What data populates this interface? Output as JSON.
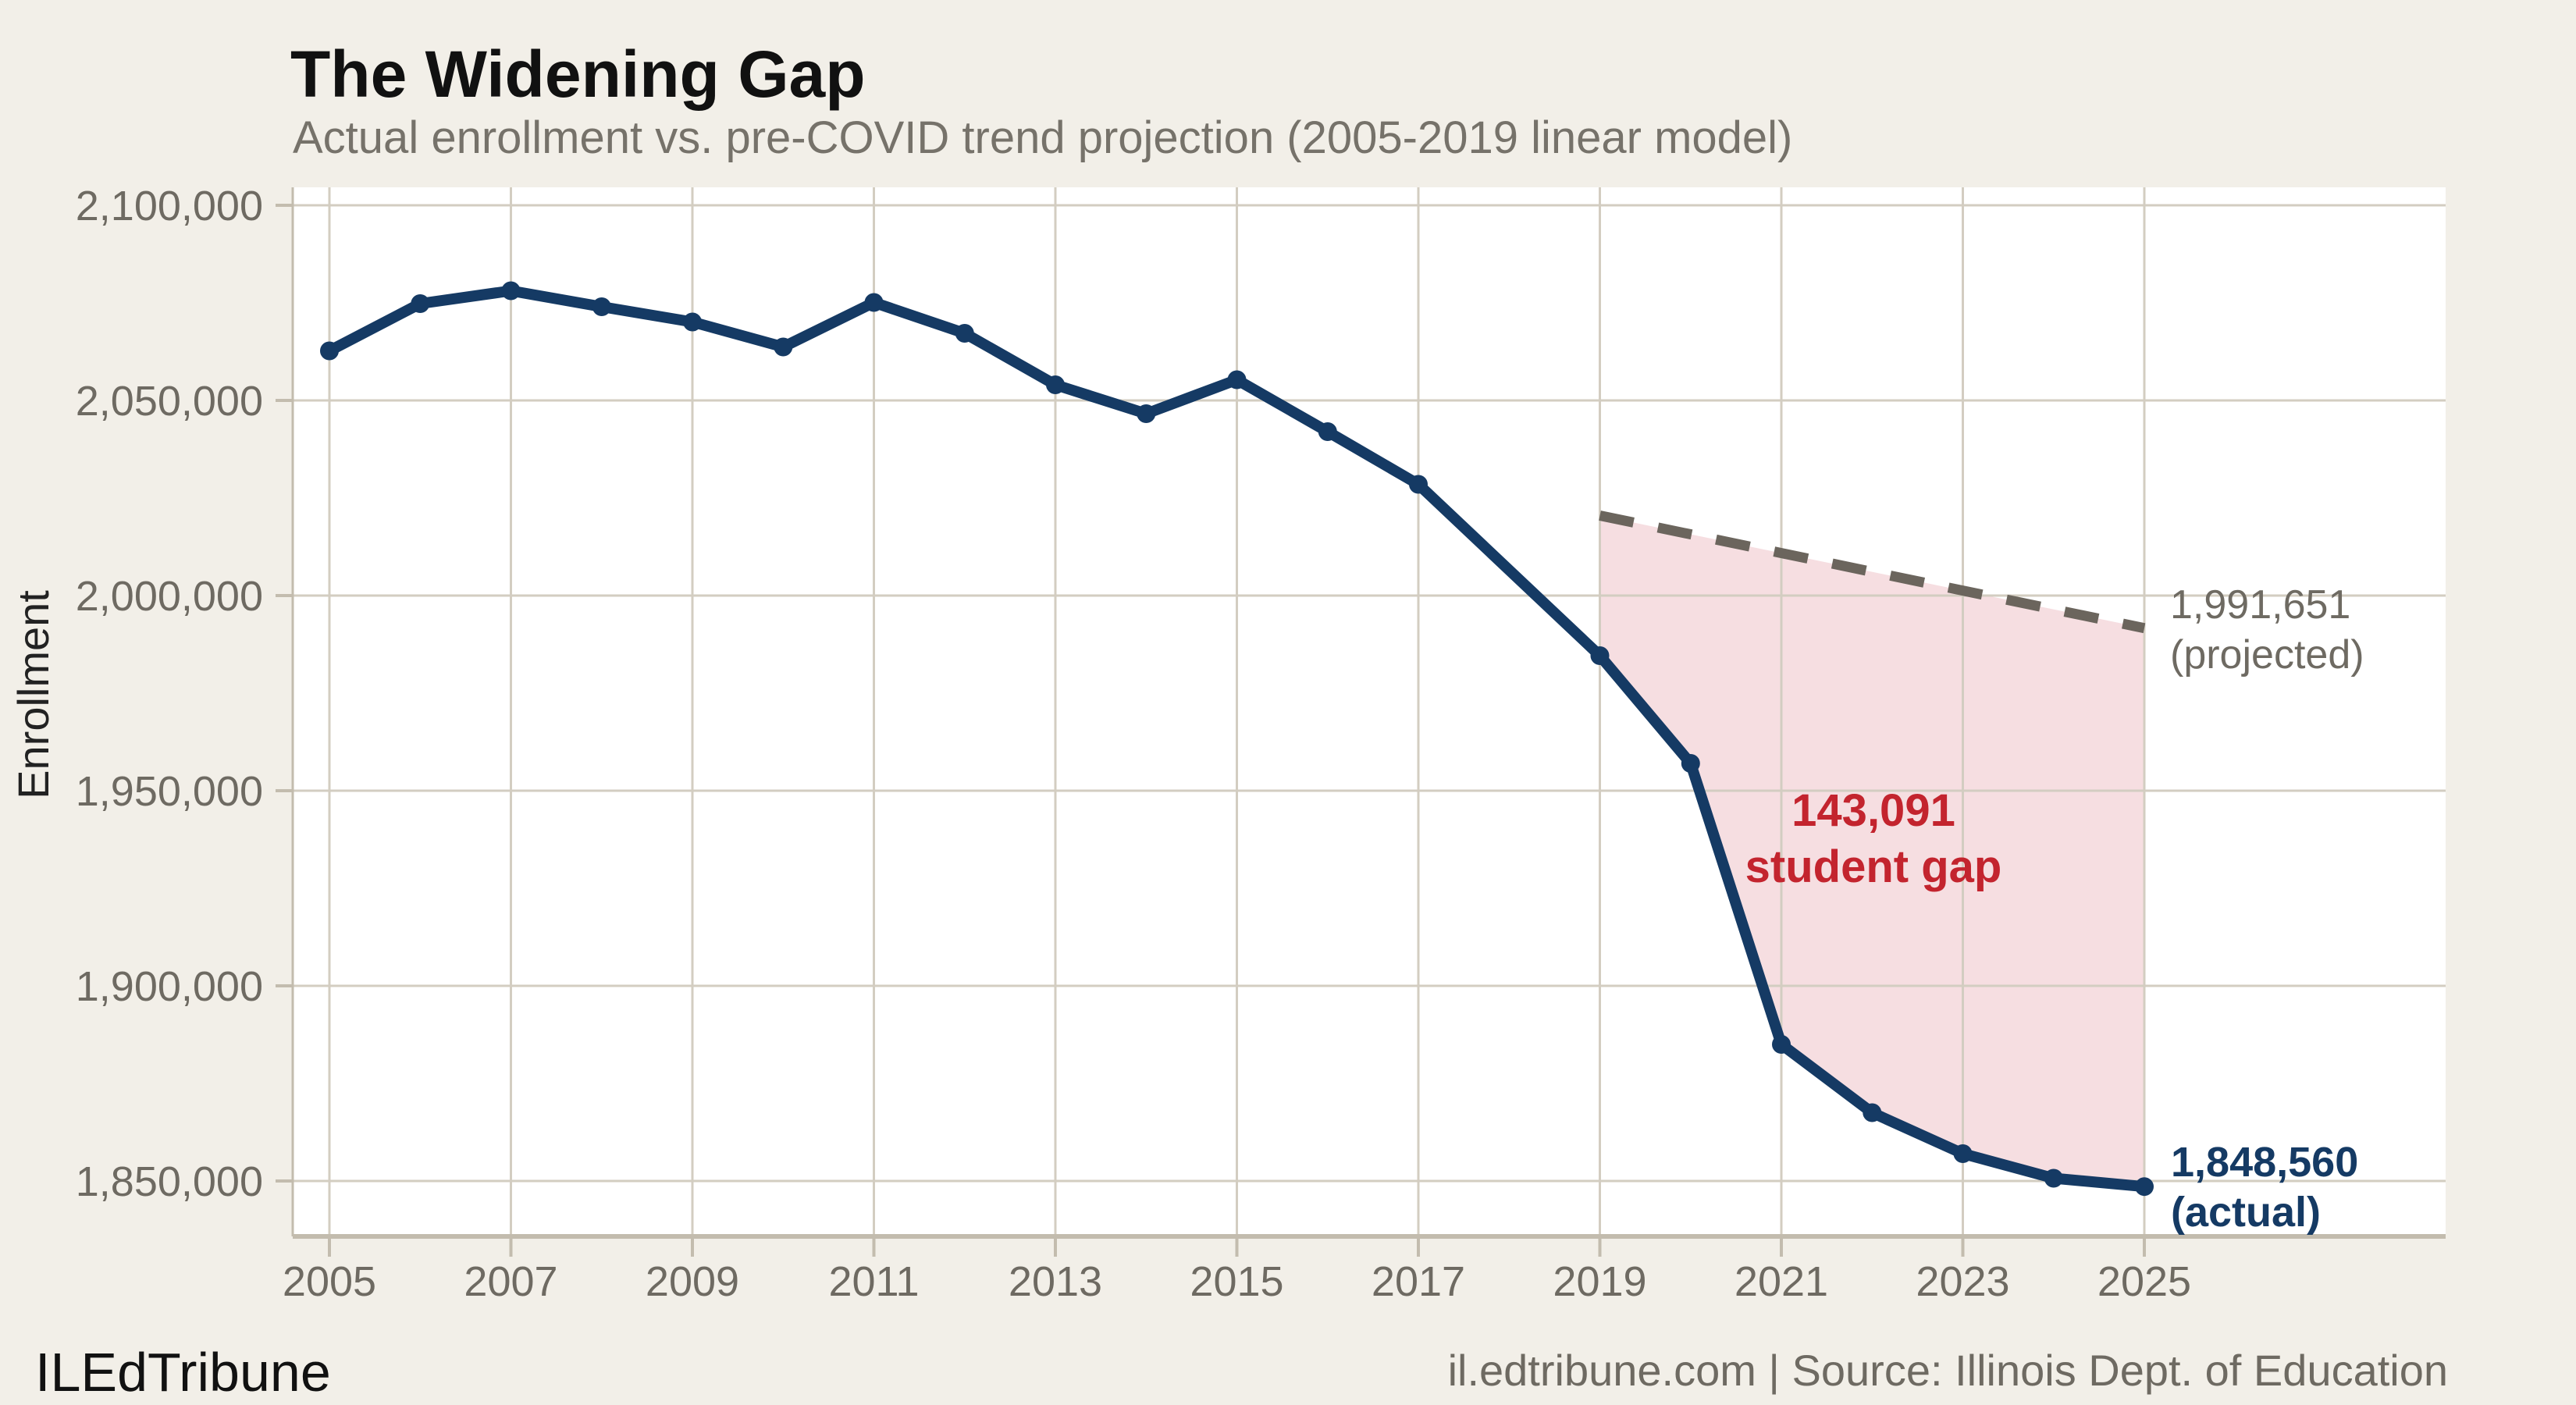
{
  "chart_data": {
    "type": "line",
    "title": "The Widening Gap",
    "subtitle": "Actual enrollment vs. pre-COVID trend projection (2005-2019 linear model)",
    "ylabel": "Enrollment",
    "xlabel": "",
    "grid": true,
    "x_ticks": [
      2005,
      2007,
      2009,
      2011,
      2013,
      2015,
      2017,
      2019,
      2021,
      2023,
      2025
    ],
    "y_ticks": [
      {
        "value": 2100000,
        "label": "2,100,000"
      },
      {
        "value": 2050000,
        "label": "2,050,000"
      },
      {
        "value": 2000000,
        "label": "2,000,000"
      },
      {
        "value": 1950000,
        "label": "1,950,000"
      },
      {
        "value": 1900000,
        "label": "1,900,000"
      },
      {
        "value": 1850000,
        "label": "1,850,000"
      }
    ],
    "xlim": [
      2004.6,
      2028.3
    ],
    "ylim": [
      1835800,
      2104600
    ],
    "series": [
      {
        "name": "actual",
        "style": "solid",
        "markers": true,
        "color": "#153a64",
        "x": [
          2005,
          2006,
          2007,
          2008,
          2009,
          2010,
          2011,
          2012,
          2013,
          2014,
          2015,
          2016,
          2017,
          2018,
          2019,
          2020,
          2021,
          2022,
          2023,
          2024,
          2025
        ],
        "values": [
          2062700,
          2074800,
          2078100,
          2074000,
          2070100,
          2063700,
          2075100,
          2067200,
          2054000,
          2046600,
          2055300,
          2042000,
          2028500,
          null,
          1984600,
          1957000,
          1885000,
          1867500,
          1857000,
          1850700,
          1848560
        ]
      },
      {
        "name": "projected",
        "style": "dashed",
        "markers": false,
        "color": "#6b655d",
        "x": [
          2019,
          2025
        ],
        "values": [
          2020500,
          1991651
        ]
      }
    ],
    "gap_shading": {
      "x_range": [
        2019,
        2025
      ],
      "fill": "#f6dee1"
    },
    "annotations": {
      "projected_value": "1,991,651",
      "projected_caption": "(projected)",
      "actual_value": "1,848,560",
      "actual_caption": "(actual)",
      "gap_value": "143,091",
      "gap_caption": "student gap"
    },
    "legend_position": "none"
  },
  "footer": {
    "brand": "ILEdTribune",
    "source": "il.edtribune.com | Source: Illinois Dept. of Education"
  },
  "colors": {
    "background": "#f2efe8",
    "plot_background": "#ffffff",
    "gridline": "#d3cdc1",
    "spine": "#c3bcae",
    "axis_text": "#6e6a62",
    "actual_line": "#153a64",
    "projected_line": "#6b655d",
    "gap_fill": "#f6dee1",
    "gap_label": "#c3242e"
  }
}
